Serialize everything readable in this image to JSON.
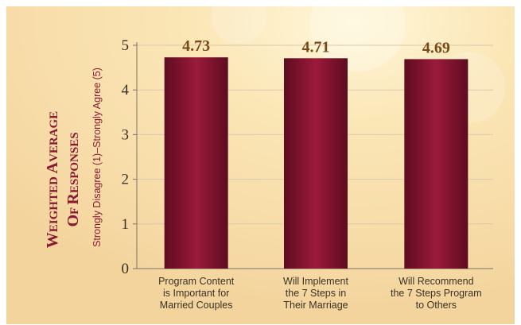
{
  "chart_data": {
    "type": "bar",
    "title": "",
    "ylabel_main_line1": "Weighted Average",
    "ylabel_main_line2": "of Responses",
    "ylabel_sub": "Strongly Disagree (1)–Strongly Agree (5)",
    "categories": [
      [
        "Program Content",
        "is Important for",
        "Married Couples"
      ],
      [
        "Will Implement",
        "the 7 Steps in",
        "Their Marriage"
      ],
      [
        "Will Recommend",
        "the 7 Steps Program",
        "to Others"
      ]
    ],
    "values": [
      4.73,
      4.71,
      4.69
    ],
    "value_labels": [
      "4.73",
      "4.71",
      "4.69"
    ],
    "yticks": [
      "0",
      "1",
      "2",
      "3",
      "4",
      "5"
    ],
    "ylim": [
      0,
      5
    ],
    "grid": true,
    "colors": {
      "bar_center": "#9b1a3b",
      "bar_edge": "#5e0c20",
      "value_text": "#7a4a16",
      "axis_title": "#8a1a33",
      "grid": "#d9c9ac"
    }
  }
}
